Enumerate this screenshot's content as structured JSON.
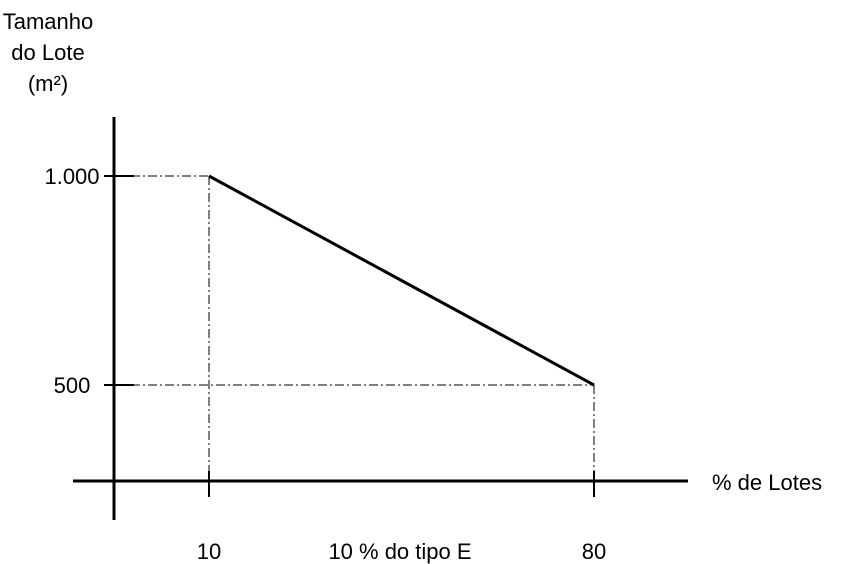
{
  "chart_data": {
    "type": "line",
    "ylabel_lines": [
      "Tamanho",
      "do Lote",
      "(m²)"
    ],
    "xlabel": "% de Lotes",
    "x_ticks": [
      {
        "value": 10,
        "label": "10"
      },
      {
        "value": 80,
        "label": "80"
      }
    ],
    "y_ticks": [
      {
        "value": 1000,
        "label": "1.000"
      },
      {
        "value": 500,
        "label": "500"
      }
    ],
    "x_annotation": "10 % do tipo E",
    "series": [
      {
        "points": [
          {
            "x": 10,
            "y": 1000
          },
          {
            "x": 80,
            "y": 500
          }
        ]
      }
    ],
    "reference_lines": "dash-dot guides from each endpoint to both axes",
    "grid": false,
    "line_color": "#000000"
  }
}
